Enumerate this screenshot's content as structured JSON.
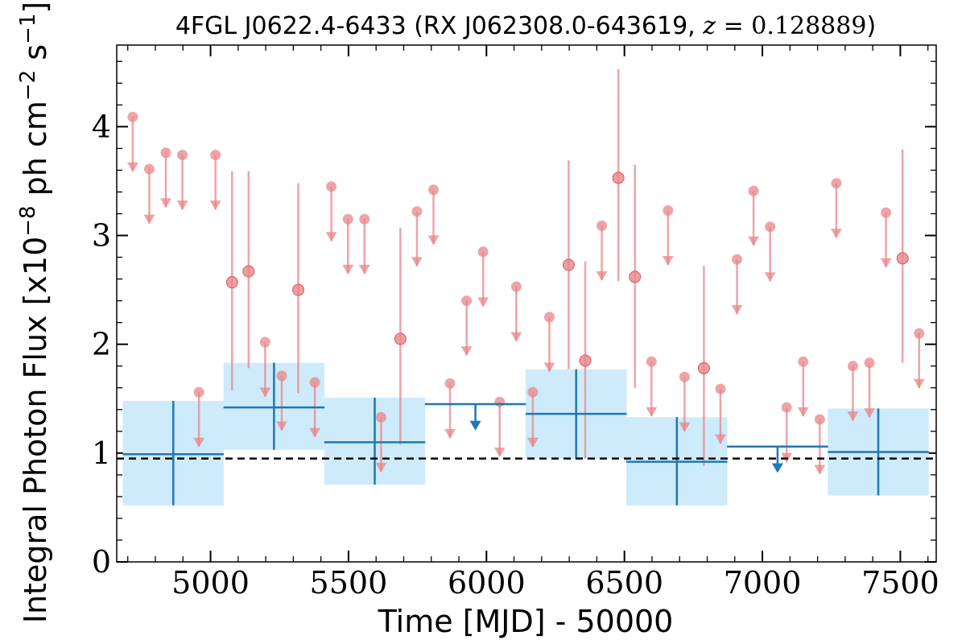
{
  "chart_data": {
    "type": "scatter",
    "title": "4FGL J0622.4-6433 (RX J062308.0-643619, z = 0.128889)",
    "title_parts": {
      "prefix": "4FGL J0622.4-6433 (RX J062308.0-643619, ",
      "math_var": "z",
      "math_rest": " = 0.128889",
      "suffix": ")"
    },
    "xlabel": "Time [MJD] - 50000",
    "ylabel": {
      "prefix": "Integral Photon Flux [x10",
      "exp1": "−8",
      "mid": " ph cm",
      "exp2": "−2",
      "mid2": " s",
      "exp3": "−1",
      "suffix": "]"
    },
    "xlim": [
      4660,
      7630
    ],
    "ylim": [
      0,
      4.75
    ],
    "xticks": [
      5000,
      5500,
      6000,
      6500,
      7000,
      7500
    ],
    "xtick_labels": [
      "5000",
      "5500",
      "6000",
      "6500",
      "7000",
      "7500"
    ],
    "yticks": [
      0,
      1,
      2,
      3,
      4
    ],
    "ytick_labels": [
      "0",
      "1",
      "2",
      "3",
      "4"
    ],
    "reference_line": 0.95,
    "colors": {
      "monthly": "#e8868a",
      "yearly": "#1f77b4",
      "yearly_band": "#cdebfb",
      "reference": "#000000"
    },
    "yearly_bins": [
      {
        "x": 4865,
        "xerr": 183,
        "y": 0.99,
        "ylo": 0.52,
        "yhi": 1.48,
        "upper_limit": false
      },
      {
        "x": 5230,
        "xerr": 183,
        "y": 1.42,
        "ylo": 1.03,
        "yhi": 1.83,
        "upper_limit": false
      },
      {
        "x": 5595,
        "xerr": 183,
        "y": 1.1,
        "ylo": 0.71,
        "yhi": 1.51,
        "upper_limit": false
      },
      {
        "x": 5960,
        "xerr": 183,
        "y": 1.45,
        "upper_limit": true
      },
      {
        "x": 6325,
        "xerr": 183,
        "y": 1.36,
        "ylo": 0.95,
        "yhi": 1.77,
        "upper_limit": false
      },
      {
        "x": 6690,
        "xerr": 183,
        "y": 0.92,
        "ylo": 0.52,
        "yhi": 1.33,
        "upper_limit": false
      },
      {
        "x": 7055,
        "xerr": 183,
        "y": 1.06,
        "upper_limit": true
      },
      {
        "x": 7420,
        "xerr": 183,
        "y": 1.01,
        "ylo": 0.61,
        "yhi": 1.41,
        "upper_limit": false
      }
    ],
    "monthly_points": [
      {
        "x": 4718,
        "y": 4.09,
        "upper_limit": true
      },
      {
        "x": 4778,
        "y": 3.61,
        "upper_limit": true
      },
      {
        "x": 4838,
        "y": 3.76,
        "upper_limit": true
      },
      {
        "x": 4898,
        "y": 3.74,
        "upper_limit": true
      },
      {
        "x": 4958,
        "y": 1.56,
        "upper_limit": true
      },
      {
        "x": 5018,
        "y": 3.74,
        "upper_limit": true
      },
      {
        "x": 5078,
        "y": 2.57,
        "ylo": 1.58,
        "yhi": 3.59,
        "upper_limit": false
      },
      {
        "x": 5138,
        "y": 2.67,
        "ylo": 1.78,
        "yhi": 3.59,
        "upper_limit": false
      },
      {
        "x": 5198,
        "y": 2.02,
        "upper_limit": true
      },
      {
        "x": 5258,
        "y": 1.71,
        "upper_limit": true
      },
      {
        "x": 5318,
        "y": 2.5,
        "ylo": 1.55,
        "yhi": 3.48,
        "upper_limit": false
      },
      {
        "x": 5378,
        "y": 1.65,
        "upper_limit": true
      },
      {
        "x": 5438,
        "y": 3.45,
        "upper_limit": true
      },
      {
        "x": 5498,
        "y": 3.15,
        "upper_limit": true
      },
      {
        "x": 5558,
        "y": 3.15,
        "upper_limit": true
      },
      {
        "x": 5618,
        "y": 1.33,
        "upper_limit": true
      },
      {
        "x": 5688,
        "y": 2.05,
        "ylo": 1.08,
        "yhi": 3.07,
        "upper_limit": false
      },
      {
        "x": 5748,
        "y": 3.22,
        "upper_limit": true
      },
      {
        "x": 5808,
        "y": 3.42,
        "upper_limit": true
      },
      {
        "x": 5868,
        "y": 1.64,
        "upper_limit": true
      },
      {
        "x": 5928,
        "y": 2.4,
        "upper_limit": true
      },
      {
        "x": 5988,
        "y": 2.85,
        "upper_limit": true
      },
      {
        "x": 6048,
        "y": 1.47,
        "upper_limit": true
      },
      {
        "x": 6108,
        "y": 2.53,
        "upper_limit": true
      },
      {
        "x": 6168,
        "y": 1.56,
        "upper_limit": true
      },
      {
        "x": 6228,
        "y": 2.25,
        "upper_limit": true
      },
      {
        "x": 6298,
        "y": 2.73,
        "ylo": 1.77,
        "yhi": 3.69,
        "upper_limit": false
      },
      {
        "x": 6358,
        "y": 1.85,
        "ylo": 0.95,
        "yhi": 2.76,
        "upper_limit": false
      },
      {
        "x": 6418,
        "y": 3.09,
        "upper_limit": true
      },
      {
        "x": 6478,
        "y": 3.53,
        "ylo": 2.58,
        "yhi": 4.53,
        "upper_limit": false
      },
      {
        "x": 6538,
        "y": 2.62,
        "ylo": 1.6,
        "yhi": 3.65,
        "upper_limit": false
      },
      {
        "x": 6598,
        "y": 1.84,
        "upper_limit": true
      },
      {
        "x": 6658,
        "y": 3.23,
        "upper_limit": true
      },
      {
        "x": 6718,
        "y": 1.7,
        "upper_limit": true
      },
      {
        "x": 6788,
        "y": 1.78,
        "ylo": 0.88,
        "yhi": 2.72,
        "upper_limit": false
      },
      {
        "x": 6848,
        "y": 1.59,
        "upper_limit": true
      },
      {
        "x": 6908,
        "y": 2.78,
        "upper_limit": true
      },
      {
        "x": 6968,
        "y": 3.41,
        "upper_limit": true
      },
      {
        "x": 7028,
        "y": 3.08,
        "upper_limit": true
      },
      {
        "x": 7088,
        "y": 1.42,
        "upper_limit": true
      },
      {
        "x": 7148,
        "y": 1.84,
        "upper_limit": true
      },
      {
        "x": 7208,
        "y": 1.31,
        "upper_limit": true
      },
      {
        "x": 7268,
        "y": 3.48,
        "upper_limit": true
      },
      {
        "x": 7328,
        "y": 1.8,
        "upper_limit": true
      },
      {
        "x": 7388,
        "y": 1.83,
        "upper_limit": true
      },
      {
        "x": 7448,
        "y": 3.21,
        "upper_limit": true
      },
      {
        "x": 7508,
        "y": 2.79,
        "ylo": 1.83,
        "yhi": 3.79,
        "upper_limit": false
      },
      {
        "x": 7568,
        "y": 2.1,
        "upper_limit": true
      }
    ]
  }
}
